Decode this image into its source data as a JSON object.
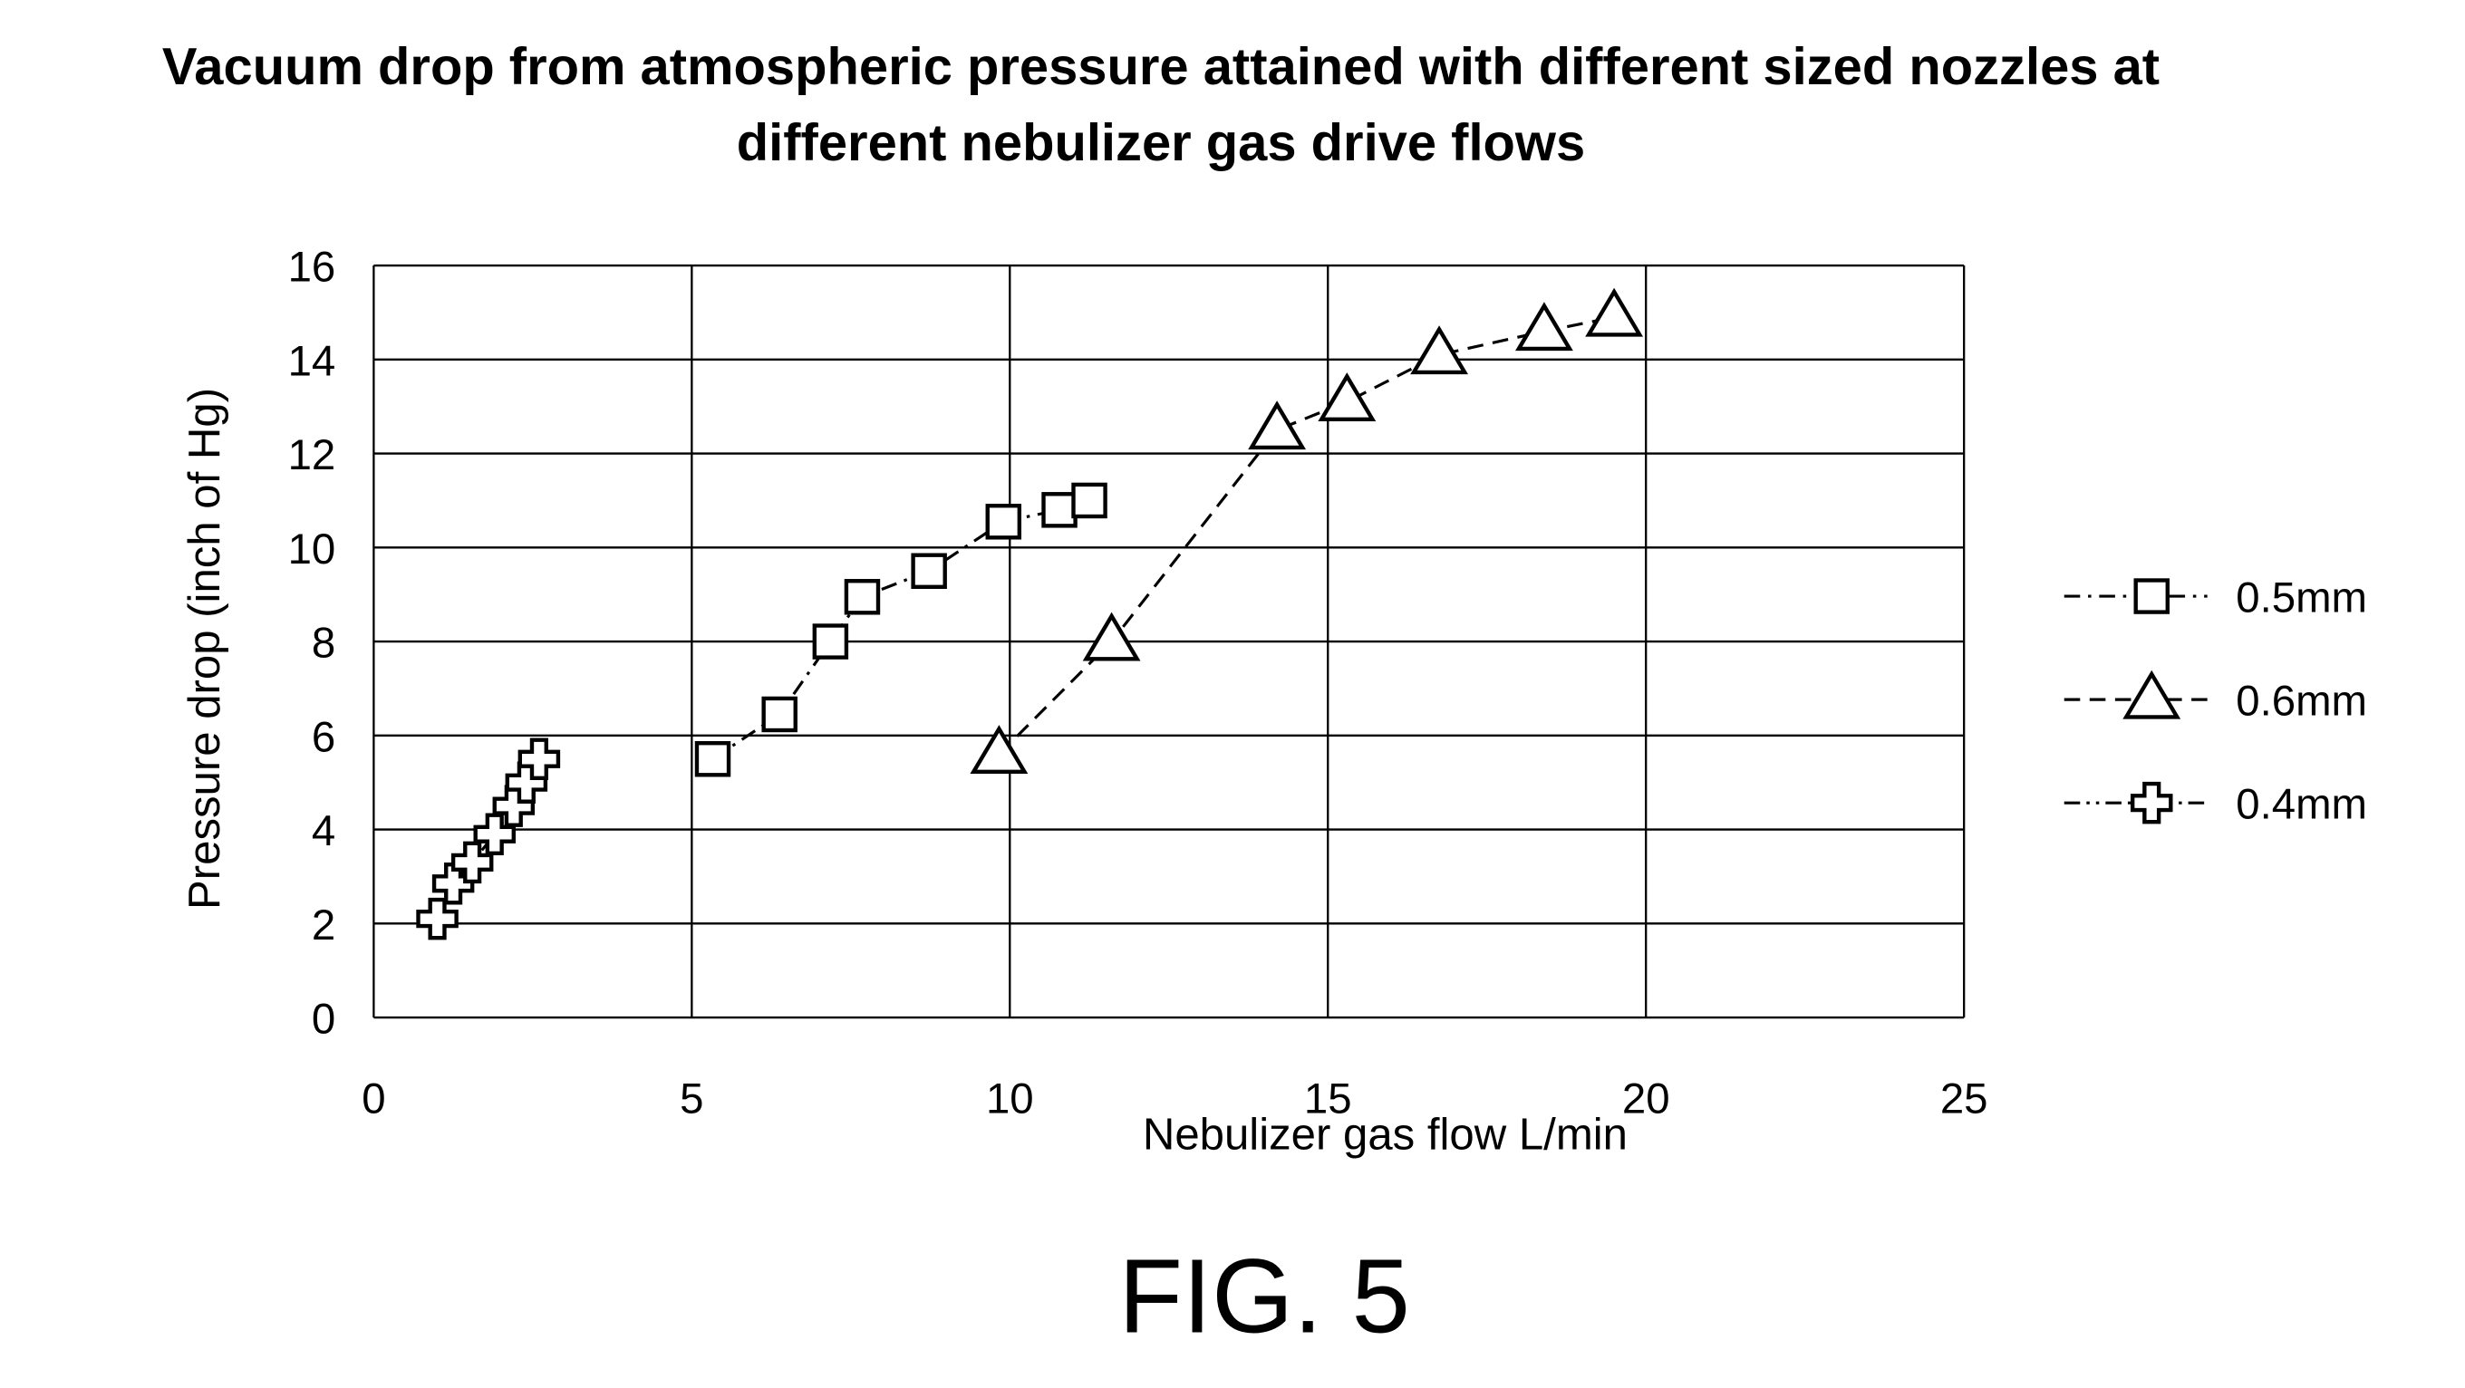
{
  "chart_data": {
    "type": "scatter",
    "title": "Vacuum drop from atmospheric pressure attained with different sized nozzles at different nebulizer gas drive flows",
    "x_label": "Nebulizer gas flow L/min",
    "y_label": "Pressure drop (inch of Hg)",
    "caption": "FIG. 5",
    "xlim": [
      0,
      25
    ],
    "xticks": [
      0,
      5,
      10,
      15,
      20,
      25
    ],
    "ylim": [
      0,
      16
    ],
    "yticks": [
      0,
      2,
      4,
      6,
      8,
      10,
      12,
      14,
      16
    ],
    "grid": true,
    "legend": "right",
    "series": [
      {
        "name": "0.5mm",
        "color": "#000000",
        "marker": "square",
        "dash": "10 5 2 5",
        "x": [
          5.33,
          6.38,
          7.18,
          7.68,
          8.73,
          9.9,
          10.78,
          11.25
        ],
        "values": [
          5.5,
          6.45,
          8.0,
          8.95,
          9.5,
          10.55,
          10.8,
          11.0
        ]
      },
      {
        "name": "0.6mm",
        "color": "#000000",
        "marker": "triangle",
        "dash": "10 6",
        "x": [
          9.83,
          11.6,
          14.2,
          15.3,
          16.75,
          18.4,
          19.5
        ],
        "values": [
          5.6,
          8.0,
          12.5,
          13.1,
          14.1,
          14.6,
          14.9
        ]
      },
      {
        "name": "0.4mm",
        "color": "#000000",
        "marker": "cross",
        "dash": "10 4 2 4 2 4",
        "x": [
          1.0,
          1.25,
          1.55,
          1.9,
          2.2,
          2.4,
          2.6
        ],
        "values": [
          2.1,
          2.85,
          3.3,
          3.9,
          4.5,
          5.0,
          5.5
        ]
      }
    ]
  }
}
